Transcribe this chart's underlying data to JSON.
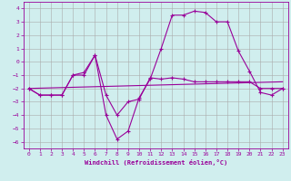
{
  "xlabel": "Windchill (Refroidissement éolien,°C)",
  "ylabel": "",
  "bg_color": "#d0eeee",
  "line_color": "#990099",
  "grid_color": "#aaaaaa",
  "x_ticks": [
    0,
    1,
    2,
    3,
    4,
    5,
    6,
    7,
    8,
    9,
    10,
    11,
    12,
    13,
    14,
    15,
    16,
    17,
    18,
    19,
    20,
    21,
    22,
    23
  ],
  "y_ticks": [
    -6,
    -5,
    -4,
    -3,
    -2,
    -1,
    0,
    1,
    2,
    3,
    4
  ],
  "ylim": [
    -6.5,
    4.5
  ],
  "xlim": [
    -0.5,
    23.5
  ],
  "line1_x": [
    0,
    1,
    2,
    3,
    4,
    5,
    6,
    7,
    8,
    9,
    10,
    11,
    12,
    13,
    14,
    15,
    16,
    17,
    18,
    19,
    20,
    21,
    22,
    23
  ],
  "line1_y": [
    -2,
    -2.5,
    -2.5,
    -2.5,
    -1,
    -1,
    0.5,
    -2.5,
    -4,
    -3,
    -2.8,
    -1.2,
    -1.3,
    -1.2,
    -1.3,
    -1.5,
    -1.5,
    -1.5,
    -1.5,
    -1.5,
    -1.5,
    -2,
    -2,
    -2
  ],
  "line2_x": [
    0,
    1,
    2,
    3,
    4,
    5,
    6,
    7,
    8,
    9,
    10,
    11,
    12,
    13,
    14,
    15,
    16,
    17,
    18,
    19,
    20,
    21,
    22,
    23
  ],
  "line2_y": [
    -2,
    -2.5,
    -2.5,
    -2.5,
    -1,
    -0.8,
    0.5,
    -4.0,
    -5.8,
    -5.2,
    -2.7,
    -1.3,
    1.0,
    3.5,
    3.5,
    3.8,
    3.7,
    3.0,
    3.0,
    0.8,
    -0.7,
    -2.3,
    -2.5,
    -2
  ],
  "line3_x": [
    0,
    23
  ],
  "line3_y": [
    -2.0,
    -1.5
  ]
}
